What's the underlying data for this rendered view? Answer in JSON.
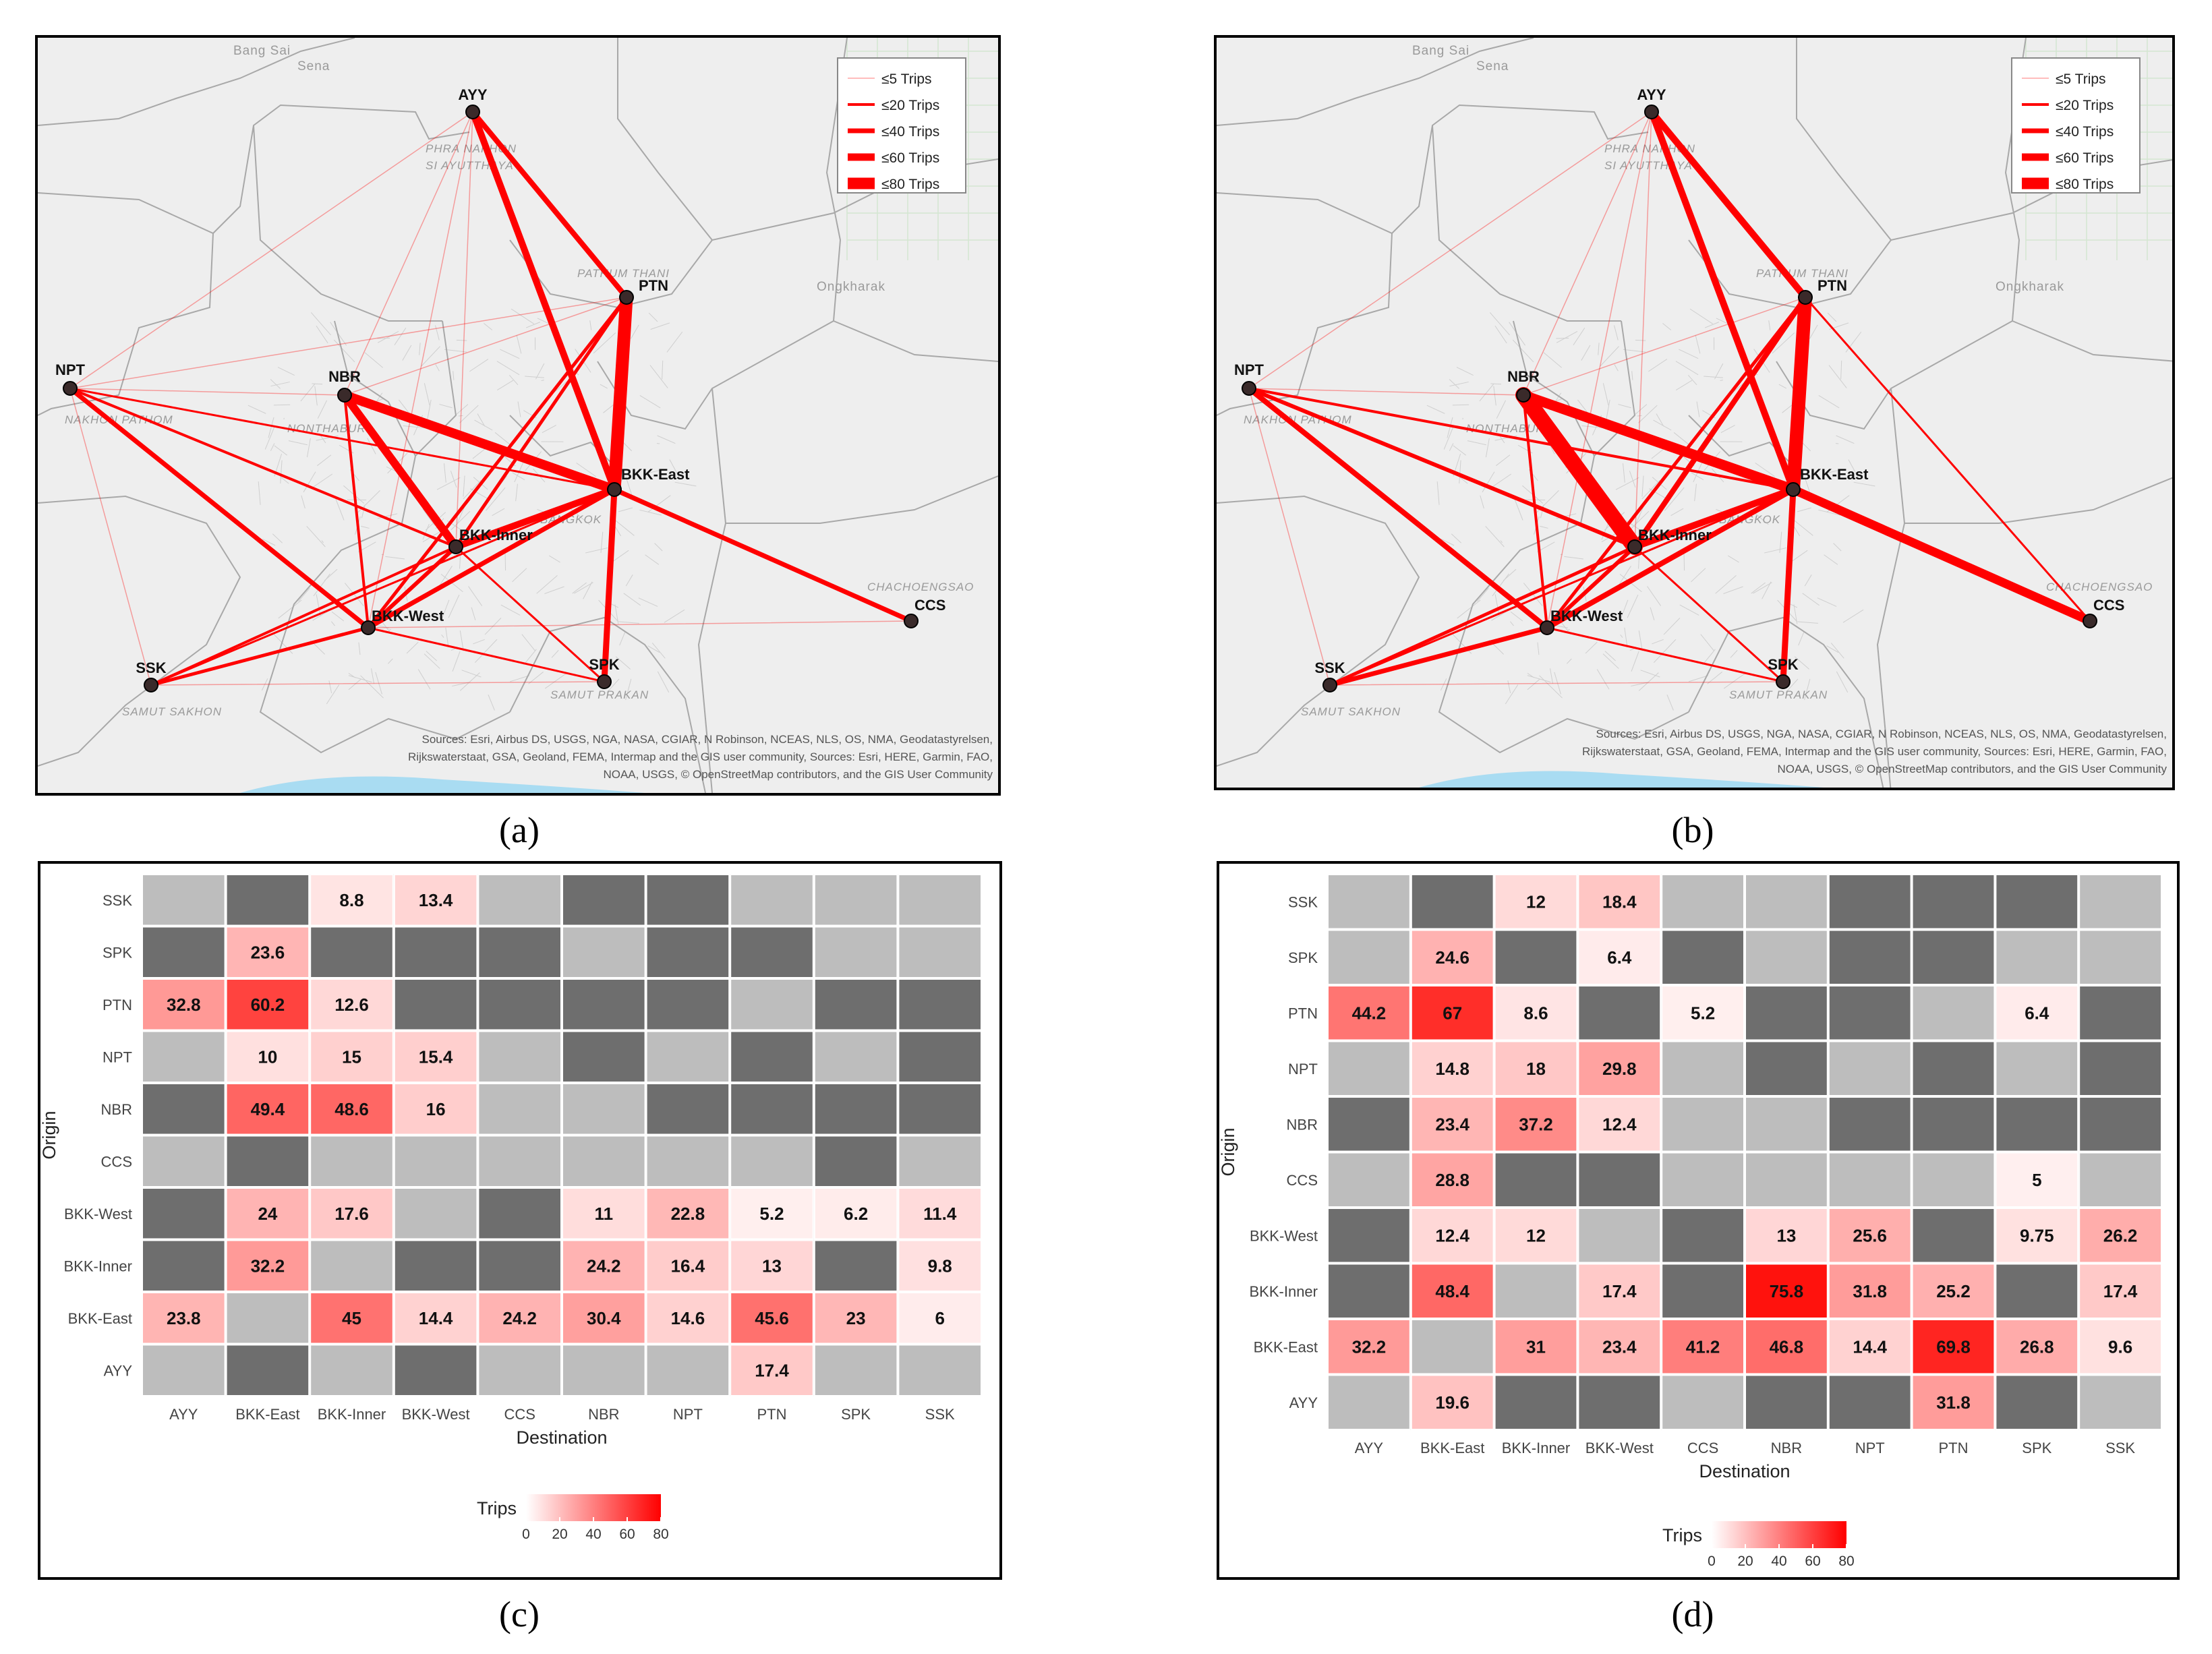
{
  "captions": {
    "a": "(a)",
    "b": "(b)",
    "c": "(c)",
    "d": "(d)"
  },
  "colors": {
    "route": "#ff0000",
    "cell_empty": "#bdbdbd",
    "cell_dark": "#6e6e6e",
    "heat_high": "#ff0000",
    "heat_low": "#ffffff",
    "panel_bg": "#c8c8c8"
  },
  "map": {
    "legend": [
      "≤5 Trips",
      "≤20 Trips",
      "≤40 Trips",
      "≤60 Trips",
      "≤80 Trips"
    ],
    "place_labels": [
      "Bang Sai",
      "Sena",
      "PHRA NAKHON",
      "SI AYUTTHAYA",
      "PATHUM THANI",
      "Ongkharak",
      "NAKHON PATHOM",
      "NONTHABURI",
      "BANGKOK",
      "CHACHOENGSAO",
      "SAMUT SAKHON",
      "SAMUT PRAKAN"
    ],
    "attribution": [
      "Sources: Esri, Airbus DS, USGS, NGA, NASA, CGIAR, N Robinson, NCEAS, NLS, OS, NMA, Geodatastyrelsen,",
      "Rijkswaterstaat, GSA, Geoland, FEMA, Intermap and the GIS user community, Sources: Esri, HERE, Garmin, FAO,",
      "NOAA, USGS, © OpenStreetMap contributors, and the GIS User Community"
    ],
    "nodes": [
      "AYY",
      "PTN",
      "NPT",
      "NBR",
      "BKK-East",
      "BKK-Inner",
      "BKK-West",
      "CCS",
      "SSK",
      "SPK"
    ]
  },
  "chart_data": [
    {
      "panel": "c",
      "type": "heatmap",
      "xlabel": "Destination",
      "ylabel": "Origin",
      "x": [
        "AYY",
        "BKK-East",
        "BKK-Inner",
        "BKK-West",
        "CCS",
        "NBR",
        "NPT",
        "PTN",
        "SPK",
        "SSK"
      ],
      "y": [
        "SSK",
        "SPK",
        "PTN",
        "NPT",
        "NBR",
        "CCS",
        "BKK-West",
        "BKK-Inner",
        "BKK-East",
        "AYY"
      ],
      "legend_title": "Trips",
      "legend_ticks": [
        "0",
        "20",
        "40",
        "60",
        "80"
      ],
      "range": [
        0,
        80
      ],
      "cells": [
        [
          "",
          "X",
          "8.8",
          "13.4",
          "",
          "X",
          "X",
          "",
          "",
          ""
        ],
        [
          "X",
          "23.6",
          "X",
          "X",
          "X",
          "",
          "X",
          "X",
          "",
          ""
        ],
        [
          "32.8",
          "60.2",
          "12.6",
          "X",
          "X",
          "X",
          "X",
          "",
          "X",
          "X"
        ],
        [
          "",
          "10",
          "15",
          "15.4",
          "",
          "X",
          "",
          "X",
          "",
          "X"
        ],
        [
          "X",
          "49.4",
          "48.6",
          "16",
          "",
          "",
          "X",
          "X",
          "X",
          "X"
        ],
        [
          "",
          "X",
          "",
          "",
          "",
          "",
          "",
          "",
          "X",
          ""
        ],
        [
          "X",
          "24",
          "17.6",
          "",
          "X",
          "11",
          "22.8",
          "5.2",
          "6.2",
          "11.4"
        ],
        [
          "X",
          "32.2",
          "",
          "X",
          "X",
          "24.2",
          "16.4",
          "13",
          "X",
          "9.8"
        ],
        [
          "23.8",
          "",
          "45",
          "14.4",
          "24.2",
          "30.4",
          "14.6",
          "45.6",
          "23",
          "6"
        ],
        [
          "",
          "X",
          "",
          "X",
          "",
          "",
          "",
          "17.4",
          "",
          ""
        ]
      ]
    },
    {
      "panel": "d",
      "type": "heatmap",
      "xlabel": "Destination",
      "ylabel": "Origin",
      "x": [
        "AYY",
        "BKK-East",
        "BKK-Inner",
        "BKK-West",
        "CCS",
        "NBR",
        "NPT",
        "PTN",
        "SPK",
        "SSK"
      ],
      "y": [
        "SSK",
        "SPK",
        "PTN",
        "NPT",
        "NBR",
        "CCS",
        "BKK-West",
        "BKK-Inner",
        "BKK-East",
        "AYY"
      ],
      "legend_title": "Trips",
      "legend_ticks": [
        "0",
        "20",
        "40",
        "60",
        "80"
      ],
      "range": [
        0,
        80
      ],
      "cells": [
        [
          "",
          "X",
          "12",
          "18.4",
          "",
          "",
          "X",
          "X",
          "X",
          ""
        ],
        [
          "",
          "24.6",
          "X",
          "6.4",
          "X",
          "",
          "X",
          "X",
          "",
          ""
        ],
        [
          "44.2",
          "67",
          "8.6",
          "X",
          "5.2",
          "X",
          "X",
          "",
          "6.4",
          "X"
        ],
        [
          "",
          "14.8",
          "18",
          "29.8",
          "",
          "X",
          "",
          "X",
          "",
          "X"
        ],
        [
          "X",
          "23.4",
          "37.2",
          "12.4",
          "",
          "",
          "X",
          "X",
          "X",
          "X"
        ],
        [
          "",
          "28.8",
          "X",
          "X",
          "",
          "",
          "",
          "",
          "5",
          ""
        ],
        [
          "X",
          "12.4",
          "12",
          "",
          "X",
          "13",
          "25.6",
          "X",
          "9.75",
          "26.2"
        ],
        [
          "X",
          "48.4",
          "",
          "17.4",
          "X",
          "75.8",
          "31.8",
          "25.2",
          "X",
          "17.4"
        ],
        [
          "32.2",
          "",
          "31",
          "23.4",
          "41.2",
          "46.8",
          "14.4",
          "69.8",
          "26.8",
          "9.6"
        ],
        [
          "",
          "19.6",
          "X",
          "X",
          "",
          "X",
          "X",
          "31.8",
          "X",
          ""
        ]
      ]
    }
  ]
}
